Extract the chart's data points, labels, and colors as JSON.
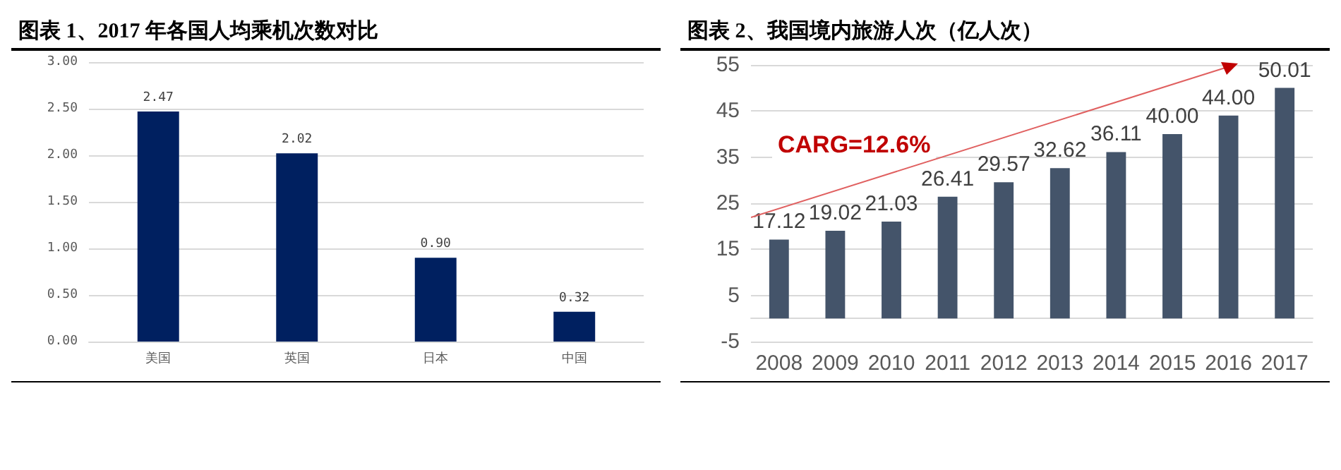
{
  "chart_data": [
    {
      "type": "bar",
      "title": "图表 1、2017 年各国人均乘机次数对比",
      "categories": [
        "美国",
        "英国",
        "日本",
        "中国"
      ],
      "values": [
        2.47,
        2.02,
        0.9,
        0.32
      ],
      "value_labels": [
        "2.47",
        "2.02",
        "0.90",
        "0.32"
      ],
      "color": "#002060",
      "ylim": [
        0,
        3
      ],
      "yticks": [
        {
          "value": 0,
          "label": "0.00"
        },
        {
          "value": 0.5,
          "label": "0.50"
        },
        {
          "value": 1,
          "label": "1.00"
        },
        {
          "value": 1.5,
          "label": "1.50"
        },
        {
          "value": 2,
          "label": "2.00"
        },
        {
          "value": 2.5,
          "label": "2.50"
        },
        {
          "value": 3,
          "label": "3.00"
        }
      ],
      "grid": "y"
    },
    {
      "type": "bar",
      "title": "图表 2、我国境内旅游人次（亿人次）",
      "categories": [
        "2008",
        "2009",
        "2010",
        "2011",
        "2012",
        "2013",
        "2014",
        "2015",
        "2016",
        "2017"
      ],
      "values": [
        17.12,
        19.02,
        21.03,
        26.41,
        29.57,
        32.62,
        36.11,
        40.0,
        44.0,
        50.01
      ],
      "value_labels": [
        "17.12",
        "19.02",
        "21.03",
        "26.41",
        "29.57",
        "32.62",
        "36.11",
        "40.00",
        "44.00",
        "50.01"
      ],
      "color": "#44546a",
      "ylim": [
        -5,
        55
      ],
      "yticks": [
        -5,
        5,
        15,
        25,
        35,
        45,
        55
      ],
      "grid": "y",
      "annotations": [
        "CARG=12.6%"
      ]
    }
  ]
}
